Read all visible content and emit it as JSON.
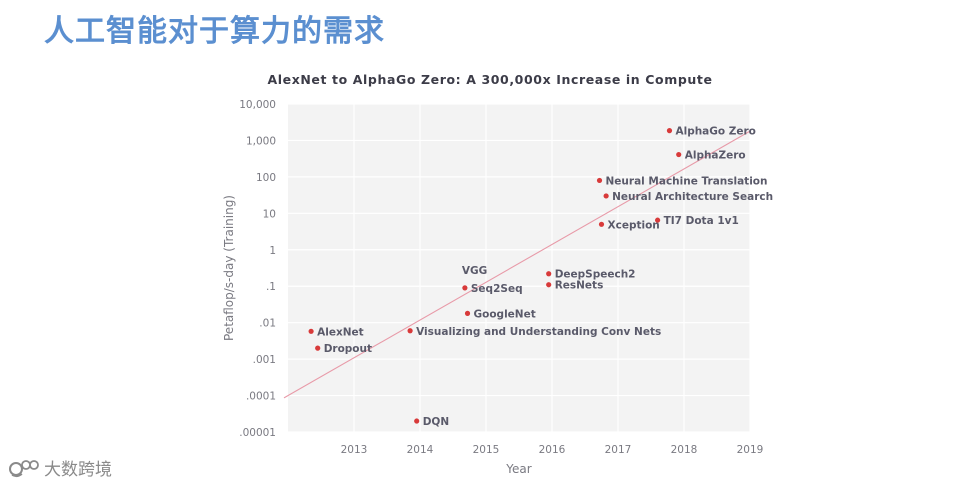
{
  "slide": {
    "title": "人工智能对于算力的需求",
    "watermark": "大数跨境"
  },
  "colors": {
    "title": "#5b8fd0",
    "plot_background": "#f3f3f3",
    "point": "#d83a3a",
    "trend_line": "#e89aa8",
    "label": "#5a5a6a",
    "axis_text": "#7a7a82"
  },
  "chart_data": {
    "type": "scatter",
    "title": "AlexNet to AlphaGo Zero: A 300,000x Increase in Compute",
    "xlabel": "Year",
    "ylabel": "Petaflop/s-day (Training)",
    "xlim": [
      2012.0,
      2019.0
    ],
    "ylim_log10": [
      -5,
      4
    ],
    "y_scale": "log",
    "grid": true,
    "x_ticks": [
      {
        "value": 2013,
        "label": "2013"
      },
      {
        "value": 2014,
        "label": "2014"
      },
      {
        "value": 2015,
        "label": "2015"
      },
      {
        "value": 2016,
        "label": "2016"
      },
      {
        "value": 2017,
        "label": "2017"
      },
      {
        "value": 2018,
        "label": "2018"
      },
      {
        "value": 2019,
        "label": "2019"
      }
    ],
    "y_ticks": [
      {
        "value": 10000,
        "label": "10,000"
      },
      {
        "value": 1000,
        "label": "1,000"
      },
      {
        "value": 100,
        "label": "100"
      },
      {
        "value": 10,
        "label": "10"
      },
      {
        "value": 1,
        "label": "1"
      },
      {
        "value": 0.1,
        "label": ".1"
      },
      {
        "value": 0.01,
        "label": ".01"
      },
      {
        "value": 0.001,
        "label": ".001"
      },
      {
        "value": 0.0001,
        "label": ".0001"
      },
      {
        "value": 1e-05,
        "label": ".00001"
      }
    ],
    "trend_line": {
      "x": [
        2012.0,
        2019.0
      ],
      "y": [
        0.0001,
        1800
      ]
    },
    "points": [
      {
        "label": "AlexNet",
        "x": 2012.35,
        "y": 0.0058
      },
      {
        "label": "Dropout",
        "x": 2012.45,
        "y": 0.002
      },
      {
        "label": "Visualizing and Understanding Conv Nets",
        "x": 2013.85,
        "y": 0.006
      },
      {
        "label": "DQN",
        "x": 2013.95,
        "y": 2e-05
      },
      {
        "label": "Seq2Seq",
        "x": 2014.68,
        "y": 0.09
      },
      {
        "label": "VGG",
        "x": 2014.68,
        "y": 0.09,
        "label_only": true
      },
      {
        "label": "GoogleNet",
        "x": 2014.72,
        "y": 0.018
      },
      {
        "label": "DeepSpeech2",
        "x": 2015.95,
        "y": 0.22
      },
      {
        "label": "ResNets",
        "x": 2015.95,
        "y": 0.11
      },
      {
        "label": "Neural Machine Translation",
        "x": 2016.72,
        "y": 80
      },
      {
        "label": "Neural Architecture Search",
        "x": 2016.82,
        "y": 30
      },
      {
        "label": "Xception",
        "x": 2016.75,
        "y": 5
      },
      {
        "label": "TI7 Dota 1v1",
        "x": 2017.6,
        "y": 6.5
      },
      {
        "label": "AlphaGo Zero",
        "x": 2017.78,
        "y": 1860
      },
      {
        "label": "AlphaZero",
        "x": 2017.92,
        "y": 410
      }
    ]
  }
}
